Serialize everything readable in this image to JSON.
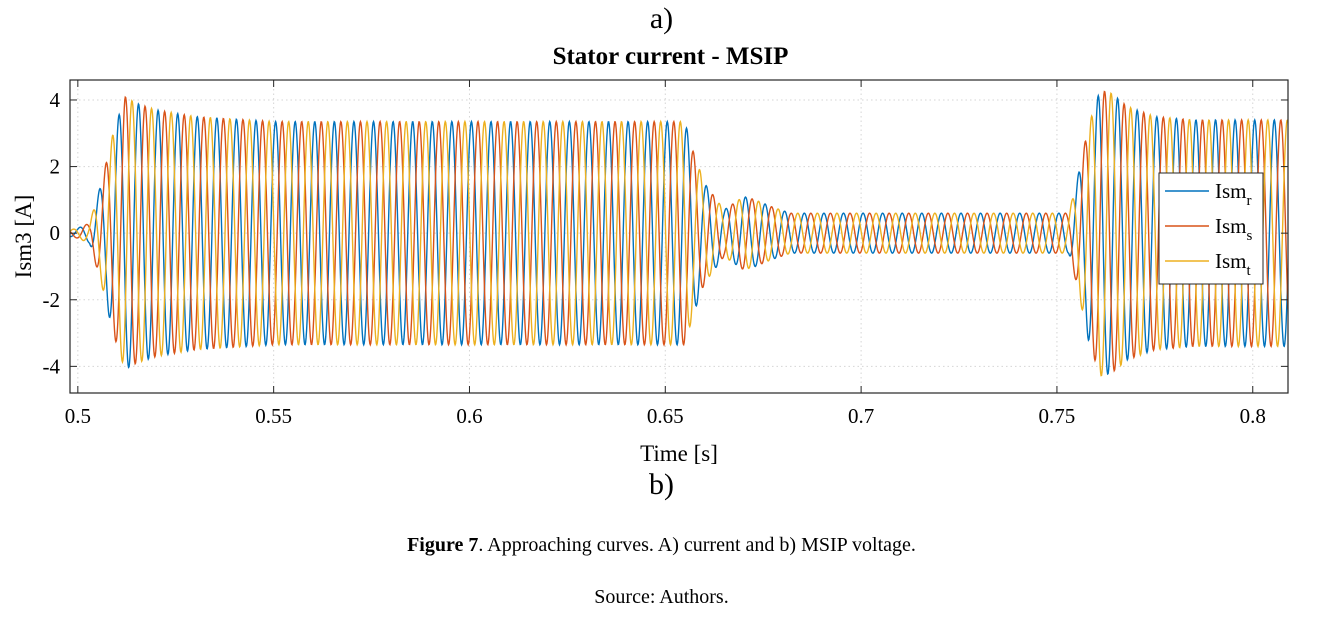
{
  "figure": {
    "panel_a_label": "a)",
    "panel_b_label": "b)",
    "caption_bold": "Figure 7",
    "caption_rest": ". Approaching curves. A) current and b) MSIP voltage.",
    "source": "Source: Authors."
  },
  "chart_data": {
    "type": "line",
    "title": "Stator current  - MSIP",
    "xlabel": "Time [s]",
    "ylabel": "Ism3 [A]",
    "xlim": [
      0.498,
      0.809
    ],
    "ylim": [
      -4.8,
      4.6
    ],
    "xticks": [
      0.5,
      0.55,
      0.6,
      0.65,
      0.7,
      0.75,
      0.8
    ],
    "xtick_labels": [
      "0.5",
      "0.55",
      "0.6",
      "0.65",
      "0.7",
      "0.75",
      "0.8"
    ],
    "yticks": [
      -4,
      -2,
      0,
      2,
      4
    ],
    "ytick_labels": [
      "-4",
      "-2",
      "0",
      "2",
      "4"
    ],
    "grid": true,
    "grid_style": "dotted",
    "legend_position": "right",
    "phase_frequency_hz": 200,
    "phase_shift_deg": 120,
    "envelope_time_s": [
      0.498,
      0.5,
      0.503,
      0.506,
      0.509,
      0.512,
      0.515,
      0.52,
      0.53,
      0.55,
      0.655,
      0.657,
      0.66,
      0.665,
      0.67,
      0.673,
      0.677,
      0.682,
      0.69,
      0.7,
      0.753,
      0.755,
      0.758,
      0.761,
      0.764,
      0.768,
      0.775,
      0.785,
      0.809
    ],
    "envelope_amplitude_a": [
      0.1,
      0.15,
      0.3,
      1.5,
      3.0,
      4.1,
      3.9,
      3.7,
      3.5,
      3.35,
      3.35,
      2.5,
      1.5,
      0.7,
      1.1,
      1.0,
      0.8,
      0.6,
      0.6,
      0.6,
      0.6,
      1.5,
      3.2,
      4.3,
      4.2,
      3.8,
      3.5,
      3.4,
      3.4
    ],
    "series": [
      {
        "name": "Ism",
        "subscript": "r",
        "color": "#0072BD",
        "phase_deg": -90
      },
      {
        "name": "Ism",
        "subscript": "s",
        "color": "#D95319",
        "phase_deg": 150
      },
      {
        "name": "Ism",
        "subscript": "t",
        "color": "#EDB120",
        "phase_deg": 30
      }
    ]
  }
}
